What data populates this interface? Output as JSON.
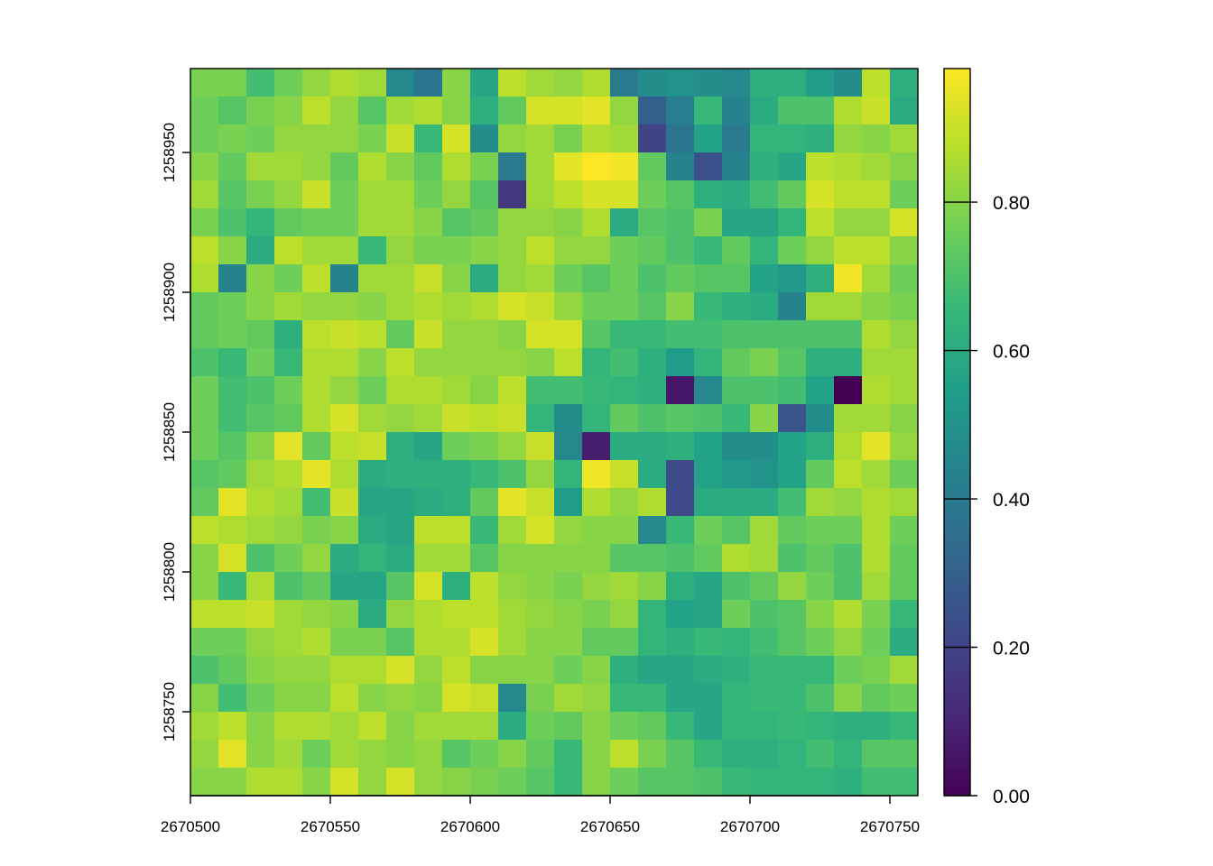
{
  "chart_data": {
    "type": "heatmap",
    "title": "",
    "xlabel": "",
    "ylabel": "",
    "grid": false,
    "colormap": "viridis",
    "x_extent": [
      2670500,
      2670760
    ],
    "y_extent": [
      1258720,
      1258980
    ],
    "cell_size": 10,
    "x_ticks": [
      {
        "value": 2670500,
        "label": "2670500"
      },
      {
        "value": 2670550,
        "label": "2670550"
      },
      {
        "value": 2670600,
        "label": "2670600"
      },
      {
        "value": 2670650,
        "label": "2670650"
      },
      {
        "value": 2670700,
        "label": "2670700"
      },
      {
        "value": 2670750,
        "label": "2670750"
      }
    ],
    "y_ticks": [
      {
        "value": 1258750,
        "label": "1258750"
      },
      {
        "value": 1258800,
        "label": "1258800"
      },
      {
        "value": 1258850,
        "label": "1258850"
      },
      {
        "value": 1258900,
        "label": "1258900"
      },
      {
        "value": 1258950,
        "label": "1258950"
      }
    ],
    "legend": {
      "position": "right",
      "range": [
        0,
        0.98
      ],
      "ticks": [
        {
          "value": 0.0,
          "label": "0.00"
        },
        {
          "value": 0.2,
          "label": "0.20"
        },
        {
          "value": 0.4,
          "label": "0.40"
        },
        {
          "value": 0.6,
          "label": "0.60"
        },
        {
          "value": 0.8,
          "label": "0.80"
        }
      ]
    },
    "values": [
      [
        0.78,
        0.78,
        0.68,
        0.76,
        0.82,
        0.86,
        0.84,
        0.46,
        0.38,
        0.8,
        0.58,
        0.88,
        0.84,
        0.82,
        0.86,
        0.4,
        0.48,
        0.5,
        0.48,
        0.46,
        0.62,
        0.62,
        0.54,
        0.48,
        0.88,
        0.62
      ],
      [
        0.76,
        0.72,
        0.78,
        0.8,
        0.88,
        0.82,
        0.72,
        0.84,
        0.86,
        0.8,
        0.62,
        0.74,
        0.92,
        0.92,
        0.94,
        0.82,
        0.3,
        0.42,
        0.66,
        0.44,
        0.6,
        0.7,
        0.7,
        0.86,
        0.9,
        0.6
      ],
      [
        0.76,
        0.78,
        0.76,
        0.82,
        0.82,
        0.82,
        0.78,
        0.9,
        0.66,
        0.92,
        0.48,
        0.82,
        0.84,
        0.78,
        0.86,
        0.84,
        0.2,
        0.38,
        0.56,
        0.4,
        0.64,
        0.64,
        0.62,
        0.82,
        0.8,
        0.84
      ],
      [
        0.8,
        0.74,
        0.84,
        0.84,
        0.82,
        0.74,
        0.86,
        0.8,
        0.74,
        0.86,
        0.78,
        0.4,
        0.84,
        0.94,
        0.98,
        0.96,
        0.74,
        0.44,
        0.24,
        0.44,
        0.62,
        0.58,
        0.88,
        0.86,
        0.84,
        0.8
      ],
      [
        0.84,
        0.72,
        0.78,
        0.82,
        0.9,
        0.76,
        0.84,
        0.84,
        0.76,
        0.82,
        0.72,
        0.16,
        0.84,
        0.88,
        0.92,
        0.92,
        0.76,
        0.72,
        0.62,
        0.6,
        0.68,
        0.74,
        0.92,
        0.88,
        0.88,
        0.76
      ],
      [
        0.78,
        0.7,
        0.64,
        0.74,
        0.76,
        0.76,
        0.84,
        0.84,
        0.8,
        0.72,
        0.74,
        0.82,
        0.82,
        0.8,
        0.86,
        0.6,
        0.72,
        0.7,
        0.78,
        0.58,
        0.58,
        0.64,
        0.88,
        0.82,
        0.82,
        0.92
      ],
      [
        0.88,
        0.8,
        0.6,
        0.88,
        0.84,
        0.84,
        0.66,
        0.82,
        0.78,
        0.78,
        0.8,
        0.82,
        0.88,
        0.82,
        0.82,
        0.76,
        0.74,
        0.7,
        0.66,
        0.74,
        0.64,
        0.76,
        0.82,
        0.88,
        0.88,
        0.8
      ],
      [
        0.86,
        0.44,
        0.8,
        0.76,
        0.88,
        0.44,
        0.84,
        0.84,
        0.9,
        0.8,
        0.6,
        0.82,
        0.84,
        0.76,
        0.72,
        0.76,
        0.7,
        0.74,
        0.72,
        0.72,
        0.56,
        0.52,
        0.62,
        0.96,
        0.84,
        0.76
      ],
      [
        0.74,
        0.76,
        0.8,
        0.84,
        0.82,
        0.82,
        0.8,
        0.84,
        0.86,
        0.84,
        0.86,
        0.92,
        0.9,
        0.82,
        0.76,
        0.76,
        0.72,
        0.8,
        0.66,
        0.62,
        0.6,
        0.44,
        0.84,
        0.84,
        0.8,
        0.78
      ],
      [
        0.74,
        0.76,
        0.74,
        0.62,
        0.88,
        0.9,
        0.88,
        0.74,
        0.9,
        0.82,
        0.82,
        0.8,
        0.92,
        0.92,
        0.72,
        0.66,
        0.66,
        0.68,
        0.68,
        0.7,
        0.7,
        0.7,
        0.7,
        0.7,
        0.86,
        0.82
      ],
      [
        0.7,
        0.66,
        0.76,
        0.66,
        0.86,
        0.86,
        0.8,
        0.88,
        0.82,
        0.82,
        0.82,
        0.82,
        0.8,
        0.88,
        0.64,
        0.68,
        0.62,
        0.54,
        0.64,
        0.74,
        0.78,
        0.72,
        0.62,
        0.62,
        0.84,
        0.84
      ],
      [
        0.76,
        0.68,
        0.7,
        0.76,
        0.86,
        0.82,
        0.76,
        0.86,
        0.86,
        0.84,
        0.8,
        0.88,
        0.68,
        0.68,
        0.66,
        0.64,
        0.62,
        0.06,
        0.46,
        0.7,
        0.7,
        0.68,
        0.56,
        0.0,
        0.86,
        0.84
      ],
      [
        0.76,
        0.68,
        0.72,
        0.74,
        0.86,
        0.92,
        0.84,
        0.82,
        0.84,
        0.9,
        0.88,
        0.9,
        0.64,
        0.48,
        0.64,
        0.74,
        0.7,
        0.72,
        0.7,
        0.66,
        0.8,
        0.26,
        0.48,
        0.84,
        0.84,
        0.8
      ],
      [
        0.76,
        0.72,
        0.8,
        0.94,
        0.74,
        0.88,
        0.9,
        0.62,
        0.58,
        0.76,
        0.78,
        0.82,
        0.9,
        0.46,
        0.08,
        0.6,
        0.6,
        0.62,
        0.56,
        0.48,
        0.48,
        0.56,
        0.62,
        0.86,
        0.94,
        0.82
      ],
      [
        0.72,
        0.74,
        0.84,
        0.86,
        0.94,
        0.86,
        0.6,
        0.62,
        0.62,
        0.62,
        0.66,
        0.7,
        0.82,
        0.64,
        0.96,
        0.9,
        0.6,
        0.22,
        0.56,
        0.52,
        0.5,
        0.56,
        0.74,
        0.88,
        0.84,
        0.76
      ],
      [
        0.74,
        0.94,
        0.86,
        0.84,
        0.68,
        0.9,
        0.58,
        0.58,
        0.6,
        0.62,
        0.74,
        0.94,
        0.9,
        0.54,
        0.86,
        0.82,
        0.86,
        0.22,
        0.6,
        0.6,
        0.6,
        0.68,
        0.84,
        0.82,
        0.86,
        0.84
      ],
      [
        0.88,
        0.86,
        0.84,
        0.82,
        0.78,
        0.8,
        0.6,
        0.58,
        0.88,
        0.88,
        0.66,
        0.84,
        0.92,
        0.82,
        0.8,
        0.8,
        0.46,
        0.66,
        0.76,
        0.72,
        0.84,
        0.74,
        0.76,
        0.76,
        0.86,
        0.76
      ],
      [
        0.8,
        0.92,
        0.7,
        0.76,
        0.82,
        0.6,
        0.64,
        0.6,
        0.84,
        0.84,
        0.72,
        0.8,
        0.8,
        0.8,
        0.8,
        0.72,
        0.72,
        0.7,
        0.74,
        0.86,
        0.84,
        0.7,
        0.74,
        0.7,
        0.86,
        0.74
      ],
      [
        0.8,
        0.66,
        0.86,
        0.7,
        0.74,
        0.58,
        0.58,
        0.72,
        0.92,
        0.62,
        0.88,
        0.82,
        0.8,
        0.78,
        0.82,
        0.84,
        0.8,
        0.62,
        0.58,
        0.7,
        0.74,
        0.82,
        0.76,
        0.7,
        0.84,
        0.74
      ],
      [
        0.88,
        0.88,
        0.9,
        0.84,
        0.82,
        0.8,
        0.6,
        0.82,
        0.86,
        0.88,
        0.88,
        0.84,
        0.82,
        0.8,
        0.78,
        0.82,
        0.64,
        0.56,
        0.58,
        0.76,
        0.7,
        0.72,
        0.8,
        0.86,
        0.78,
        0.66
      ],
      [
        0.76,
        0.76,
        0.82,
        0.84,
        0.86,
        0.78,
        0.78,
        0.72,
        0.86,
        0.86,
        0.92,
        0.84,
        0.8,
        0.8,
        0.74,
        0.74,
        0.64,
        0.62,
        0.66,
        0.64,
        0.68,
        0.72,
        0.76,
        0.82,
        0.76,
        0.6
      ],
      [
        0.7,
        0.74,
        0.8,
        0.82,
        0.82,
        0.86,
        0.86,
        0.92,
        0.82,
        0.88,
        0.8,
        0.8,
        0.8,
        0.76,
        0.8,
        0.62,
        0.58,
        0.58,
        0.6,
        0.62,
        0.66,
        0.66,
        0.66,
        0.76,
        0.78,
        0.84
      ],
      [
        0.8,
        0.68,
        0.76,
        0.8,
        0.8,
        0.88,
        0.8,
        0.82,
        0.8,
        0.92,
        0.9,
        0.46,
        0.78,
        0.84,
        0.82,
        0.66,
        0.66,
        0.58,
        0.58,
        0.64,
        0.66,
        0.66,
        0.7,
        0.8,
        0.74,
        0.76
      ],
      [
        0.84,
        0.88,
        0.8,
        0.86,
        0.86,
        0.84,
        0.88,
        0.8,
        0.84,
        0.84,
        0.84,
        0.6,
        0.76,
        0.74,
        0.8,
        0.76,
        0.74,
        0.66,
        0.58,
        0.64,
        0.64,
        0.66,
        0.64,
        0.62,
        0.62,
        0.66
      ],
      [
        0.82,
        0.94,
        0.8,
        0.84,
        0.76,
        0.84,
        0.82,
        0.8,
        0.82,
        0.72,
        0.76,
        0.8,
        0.74,
        0.66,
        0.8,
        0.88,
        0.78,
        0.72,
        0.66,
        0.62,
        0.62,
        0.64,
        0.68,
        0.64,
        0.72,
        0.72
      ],
      [
        0.8,
        0.8,
        0.86,
        0.86,
        0.8,
        0.92,
        0.82,
        0.92,
        0.82,
        0.8,
        0.78,
        0.76,
        0.72,
        0.66,
        0.8,
        0.76,
        0.72,
        0.72,
        0.7,
        0.66,
        0.64,
        0.64,
        0.64,
        0.62,
        0.68,
        0.68
      ]
    ]
  }
}
